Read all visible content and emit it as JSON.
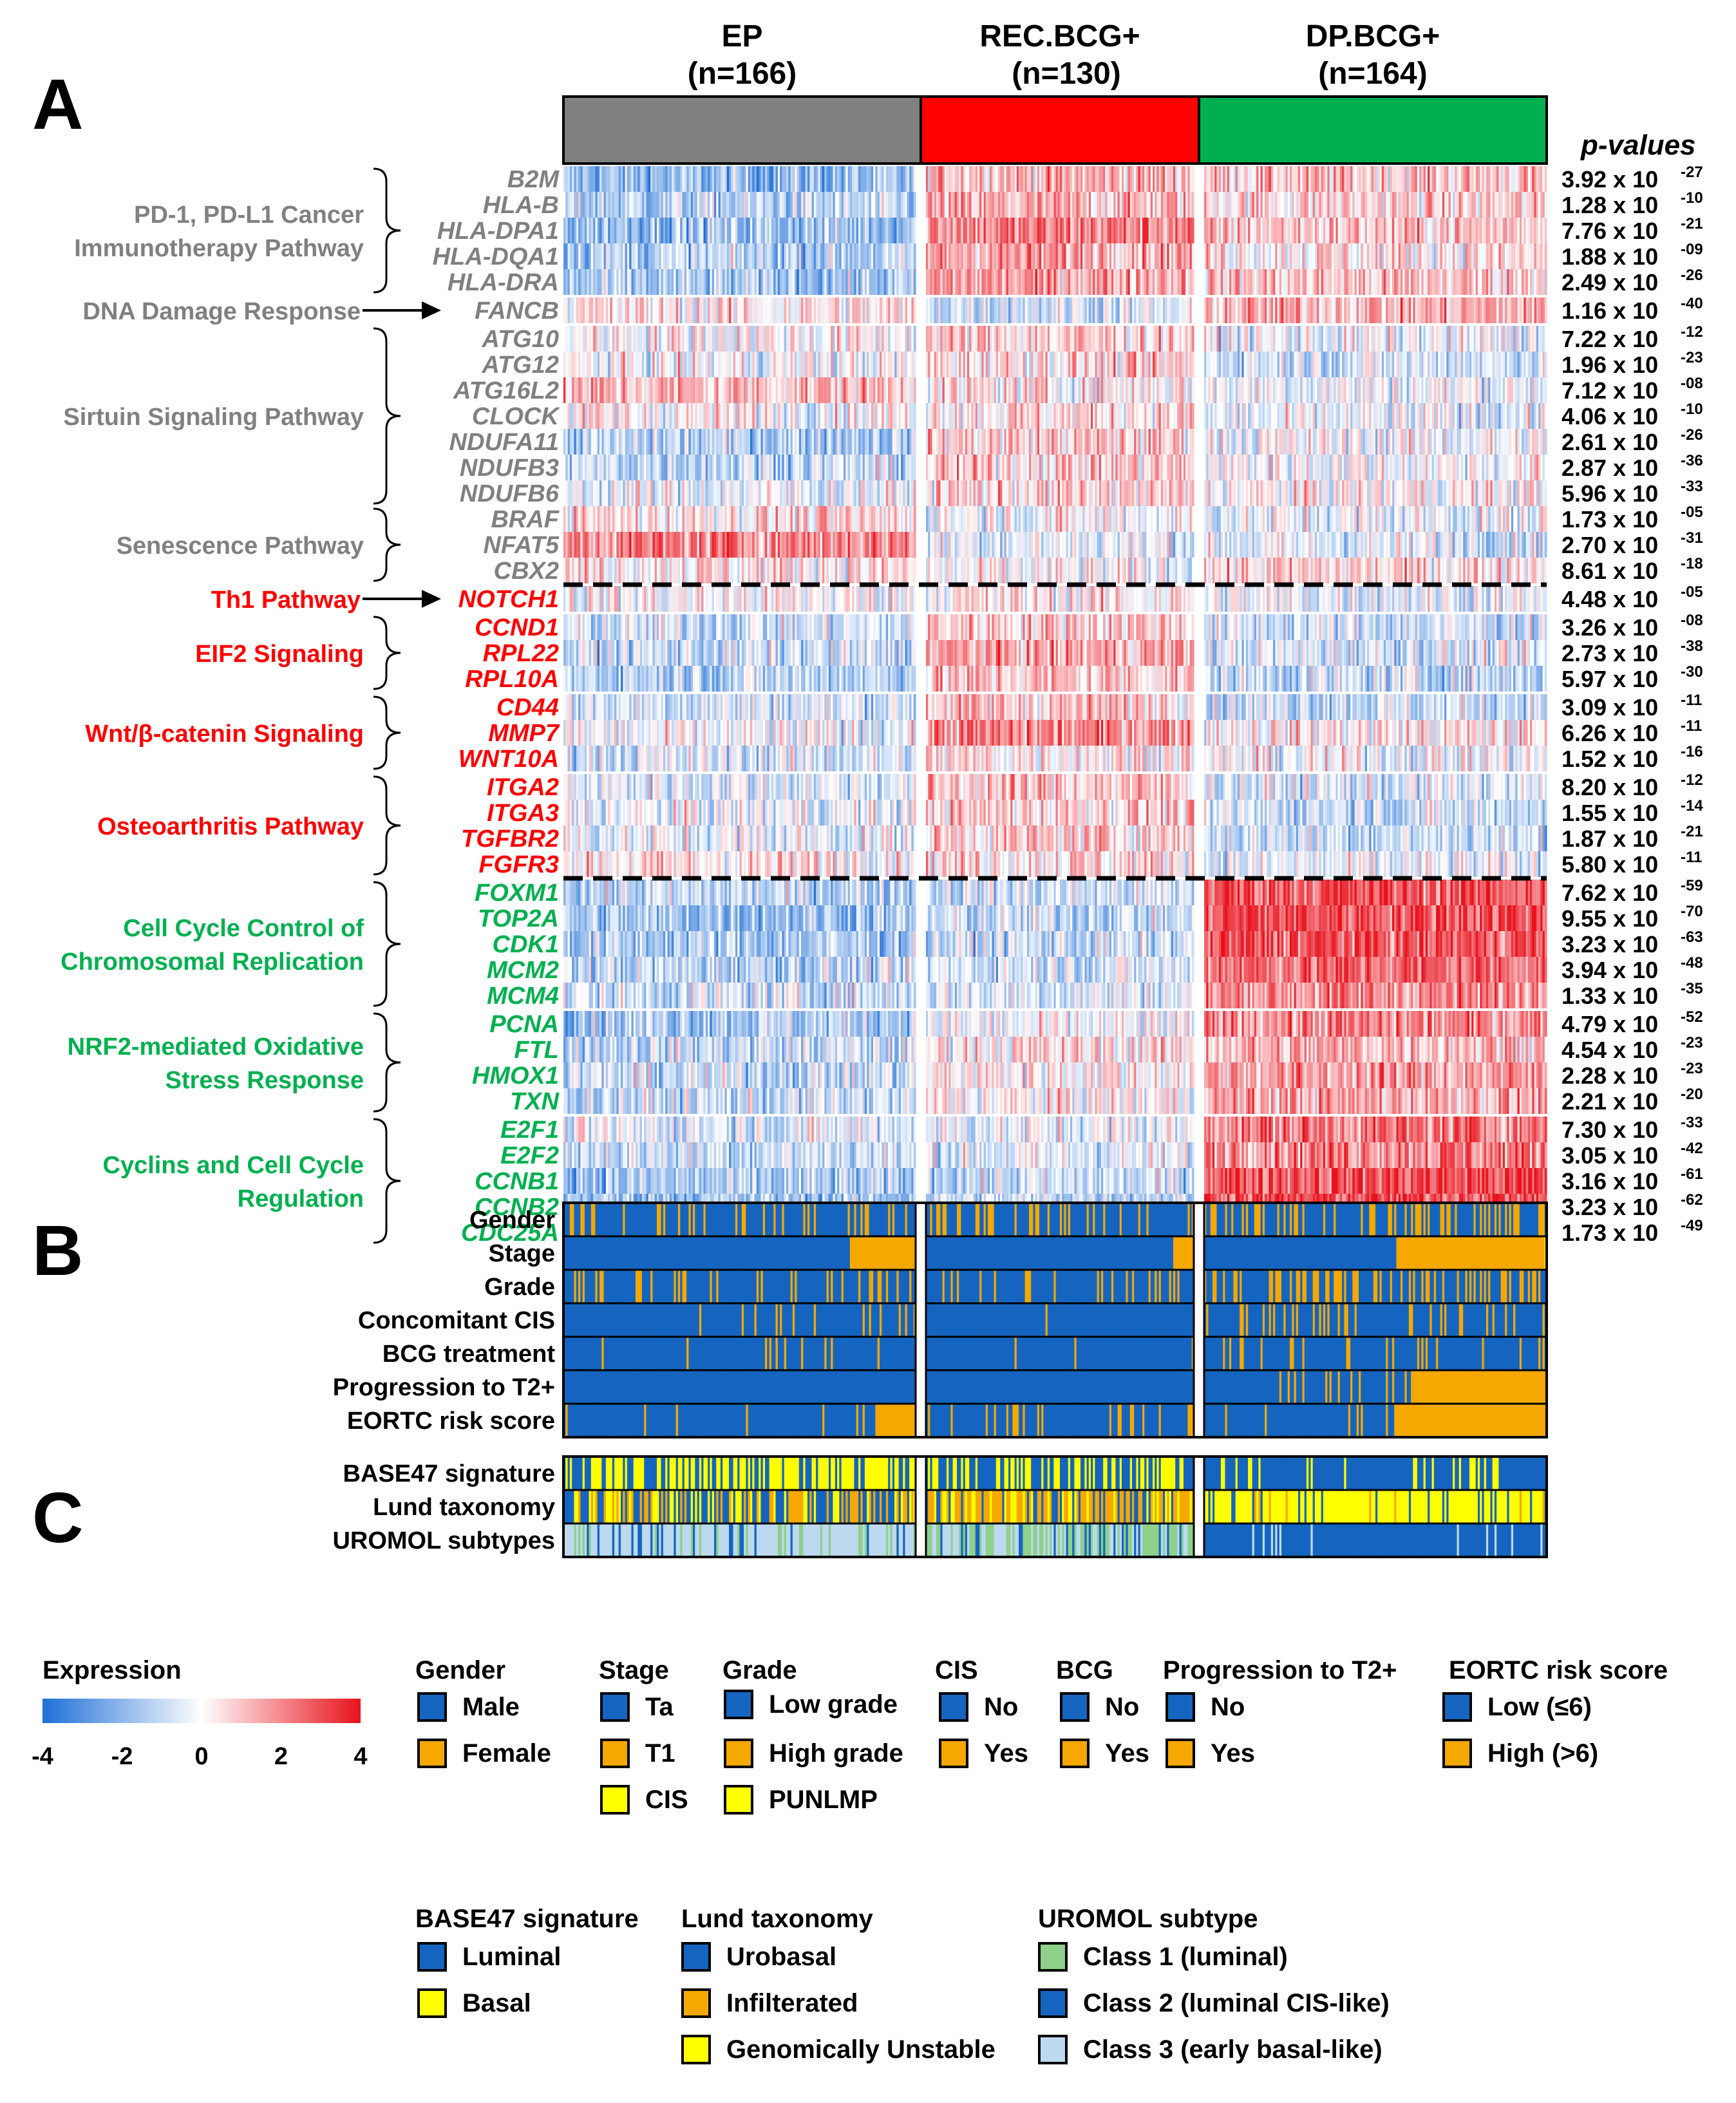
{
  "panels": {
    "A": "A",
    "B": "B",
    "C": "C"
  },
  "pvalues_header": "p-values",
  "chart_data": {
    "type": "heatmap",
    "title": "",
    "groups": [
      {
        "label": "EP",
        "n": "(n=166)",
        "color": "#808080",
        "count": 166
      },
      {
        "label": "REC.BCG+",
        "n": "(n=130)",
        "color": "#ff0000",
        "count": 130
      },
      {
        "label": "DP.BCG+",
        "n": "(n=164)",
        "color": "#00b050",
        "count": 164
      }
    ],
    "genes": [
      {
        "name": "B2M",
        "p": "3.92 x 10",
        "exp": "-27",
        "color": "#808080",
        "means": [
          -1.2,
          0.8,
          0.6
        ]
      },
      {
        "name": "HLA-B",
        "p": "1.28 x 10",
        "exp": "-10",
        "color": "#808080",
        "means": [
          -0.8,
          0.7,
          0.4
        ]
      },
      {
        "name": "HLA-DPA1",
        "p": "7.76 x 10",
        "exp": "-21",
        "color": "#808080",
        "means": [
          -1.0,
          1.3,
          0.6
        ]
      },
      {
        "name": "HLA-DQA1",
        "p": "1.88 x 10",
        "exp": "-09",
        "color": "#808080",
        "means": [
          -0.8,
          1.0,
          0.3
        ]
      },
      {
        "name": "HLA-DRA",
        "p": "2.49 x 10",
        "exp": "-26",
        "color": "#808080",
        "means": [
          -1.0,
          1.0,
          0.6
        ]
      },
      {
        "name": "FANCB",
        "p": "1.16 x 10",
        "exp": "-40",
        "color": "#808080",
        "means": [
          0.2,
          -0.4,
          0.8
        ]
      },
      {
        "name": "ATG10",
        "p": "7.22 x 10",
        "exp": "-12",
        "color": "#808080",
        "means": [
          0.1,
          0.5,
          -0.2
        ]
      },
      {
        "name": "ATG12",
        "p": "1.96 x 10",
        "exp": "-23",
        "color": "#808080",
        "means": [
          -0.1,
          0.4,
          -0.4
        ]
      },
      {
        "name": "ATG16L2",
        "p": "7.12 x 10",
        "exp": "-08",
        "color": "#808080",
        "means": [
          0.7,
          0.2,
          -0.1
        ]
      },
      {
        "name": "CLOCK",
        "p": "4.06 x 10",
        "exp": "-10",
        "color": "#808080",
        "means": [
          0.1,
          0.4,
          -0.3
        ]
      },
      {
        "name": "NDUFA11",
        "p": "2.61 x 10",
        "exp": "-26",
        "color": "#808080",
        "means": [
          -0.8,
          0.5,
          -0.1
        ]
      },
      {
        "name": "NDUFB3",
        "p": "2.87 x 10",
        "exp": "-36",
        "color": "#808080",
        "means": [
          -0.6,
          0.5,
          0.0
        ]
      },
      {
        "name": "NDUFB6",
        "p": "5.96 x 10",
        "exp": "-33",
        "color": "#808080",
        "means": [
          -0.2,
          0.4,
          0.1
        ]
      },
      {
        "name": "BRAF",
        "p": "1.73 x 10",
        "exp": "-05",
        "color": "#808080",
        "means": [
          0.3,
          0.0,
          -0.2
        ]
      },
      {
        "name": "NFAT5",
        "p": "2.70 x 10",
        "exp": "-31",
        "color": "#808080",
        "means": [
          1.3,
          -0.2,
          -0.3
        ]
      },
      {
        "name": "CBX2",
        "p": "8.61 x 10",
        "exp": "-18",
        "color": "#808080",
        "means": [
          0.3,
          -0.1,
          0.4
        ]
      },
      {
        "name": "NOTCH1",
        "p": "4.48 x 10",
        "exp": "-05",
        "color": "#ff0000",
        "means": [
          0.0,
          0.2,
          -0.2
        ]
      },
      {
        "name": "CCND1",
        "p": "3.26 x 10",
        "exp": "-08",
        "color": "#ff0000",
        "means": [
          -0.5,
          0.6,
          -0.5
        ]
      },
      {
        "name": "RPL22",
        "p": "2.73 x 10",
        "exp": "-38",
        "color": "#ff0000",
        "means": [
          -0.6,
          0.9,
          -0.4
        ]
      },
      {
        "name": "RPL10A",
        "p": "5.97 x 10",
        "exp": "-30",
        "color": "#ff0000",
        "means": [
          -0.7,
          0.6,
          -0.6
        ]
      },
      {
        "name": "CD44",
        "p": "3.09 x 10",
        "exp": "-11",
        "color": "#ff0000",
        "means": [
          -0.4,
          0.6,
          -0.5
        ]
      },
      {
        "name": "MMP7",
        "p": "6.26 x 10",
        "exp": "-11",
        "color": "#ff0000",
        "means": [
          -0.2,
          1.2,
          0.2
        ]
      },
      {
        "name": "WNT10A",
        "p": "1.52 x 10",
        "exp": "-16",
        "color": "#ff0000",
        "means": [
          -0.4,
          0.3,
          -0.1
        ]
      },
      {
        "name": "ITGA2",
        "p": "8.20 x 10",
        "exp": "-12",
        "color": "#ff0000",
        "means": [
          -0.3,
          0.6,
          -0.4
        ]
      },
      {
        "name": "ITGA3",
        "p": "1.55 x 10",
        "exp": "-14",
        "color": "#ff0000",
        "means": [
          -0.2,
          0.5,
          -0.5
        ]
      },
      {
        "name": "TGFBR2",
        "p": "1.87 x 10",
        "exp": "-21",
        "color": "#ff0000",
        "means": [
          -0.2,
          0.5,
          -0.5
        ]
      },
      {
        "name": "FGFR3",
        "p": "5.80 x 10",
        "exp": "-11",
        "color": "#ff0000",
        "means": [
          0.3,
          0.4,
          -0.3
        ]
      },
      {
        "name": "FOXM1",
        "p": "7.62 x 10",
        "exp": "-59",
        "color": "#00b050",
        "means": [
          -0.7,
          -0.5,
          1.8
        ]
      },
      {
        "name": "TOP2A",
        "p": "9.55 x 10",
        "exp": "-70",
        "color": "#00b050",
        "means": [
          -1.0,
          -0.6,
          1.9
        ]
      },
      {
        "name": "CDK1",
        "p": "3.23 x 10",
        "exp": "-63",
        "color": "#00b050",
        "means": [
          -0.9,
          -0.6,
          1.8
        ]
      },
      {
        "name": "MCM2",
        "p": "3.94 x 10",
        "exp": "-48",
        "color": "#00b050",
        "means": [
          -0.7,
          -0.4,
          1.6
        ]
      },
      {
        "name": "MCM4",
        "p": "1.33 x 10",
        "exp": "-35",
        "color": "#00b050",
        "means": [
          -0.5,
          -0.3,
          1.2
        ]
      },
      {
        "name": "PCNA",
        "p": "4.79 x 10",
        "exp": "-52",
        "color": "#00b050",
        "means": [
          -0.8,
          -0.2,
          1.2
        ]
      },
      {
        "name": "FTL",
        "p": "4.54 x 10",
        "exp": "-23",
        "color": "#00b050",
        "means": [
          -0.6,
          0.3,
          0.8
        ]
      },
      {
        "name": "HMOX1",
        "p": "2.28 x 10",
        "exp": "-23",
        "color": "#00b050",
        "means": [
          -0.6,
          0.2,
          1.0
        ]
      },
      {
        "name": "TXN",
        "p": "2.21 x 10",
        "exp": "-20",
        "color": "#00b050",
        "means": [
          -0.6,
          0.1,
          0.9
        ]
      },
      {
        "name": "E2F1",
        "p": "7.30 x 10",
        "exp": "-33",
        "color": "#00b050",
        "means": [
          -0.3,
          -0.2,
          1.4
        ]
      },
      {
        "name": "E2F2",
        "p": "3.05 x 10",
        "exp": "-42",
        "color": "#00b050",
        "means": [
          -0.5,
          -0.3,
          1.4
        ]
      },
      {
        "name": "CCNB1",
        "p": "3.16 x 10",
        "exp": "-61",
        "color": "#00b050",
        "means": [
          -1.0,
          -0.6,
          1.9
        ]
      },
      {
        "name": "CCNB2",
        "p": "3.23 x 10",
        "exp": "-62",
        "color": "#00b050",
        "means": [
          -1.0,
          -0.6,
          1.9
        ]
      },
      {
        "name": "CDC25A",
        "p": "1.73 x 10",
        "exp": "-49",
        "color": "#00b050",
        "means": [
          -0.5,
          -0.2,
          1.5
        ]
      }
    ],
    "pathways": [
      {
        "lines": [
          "PD-1, PD-L1 Cancer",
          "Immunotherapy Pathway"
        ],
        "from": 0,
        "to": 4,
        "color": "#808080",
        "marker": "brace"
      },
      {
        "lines": [
          "DNA Damage Response"
        ],
        "from": 5,
        "to": 5,
        "color": "#808080",
        "marker": "arrow"
      },
      {
        "lines": [
          "Sirtuin Signaling Pathway"
        ],
        "from": 6,
        "to": 12,
        "color": "#808080",
        "marker": "brace"
      },
      {
        "lines": [
          "Senescence Pathway"
        ],
        "from": 13,
        "to": 15,
        "color": "#808080",
        "marker": "brace"
      },
      {
        "lines": [
          "Th1 Pathway"
        ],
        "from": 16,
        "to": 16,
        "color": "#ff0000",
        "marker": "arrow"
      },
      {
        "lines": [
          "EIF2 Signaling"
        ],
        "from": 17,
        "to": 19,
        "color": "#ff0000",
        "marker": "brace"
      },
      {
        "lines": [
          "Wnt/β-catenin Signaling"
        ],
        "from": 20,
        "to": 22,
        "color": "#ff0000",
        "marker": "brace"
      },
      {
        "lines": [
          "Osteoarthritis Pathway"
        ],
        "from": 23,
        "to": 26,
        "color": "#ff0000",
        "marker": "brace"
      },
      {
        "lines": [
          "Cell Cycle Control of",
          "Chromosomal Replication"
        ],
        "from": 27,
        "to": 31,
        "color": "#00b050",
        "marker": "brace"
      },
      {
        "lines": [
          "NRF2-mediated Oxidative",
          "Stress Response"
        ],
        "from": 32,
        "to": 35,
        "color": "#00b050",
        "marker": "brace"
      },
      {
        "lines": [
          "Cyclins and Cell Cycle",
          "Regulation"
        ],
        "from": 36,
        "to": 40,
        "color": "#00b050",
        "marker": "brace"
      }
    ],
    "dashed_after": [
      15,
      26
    ],
    "row_gaps_after": [
      4,
      5,
      15,
      16,
      19,
      22,
      26,
      31,
      35
    ],
    "clinical_tracks": [
      {
        "label": "Gender",
        "rates": [
          0.25,
          0.22,
          0.28
        ]
      },
      {
        "label": "Stage",
        "t1_fraction": [
          0.19,
          0.08,
          0.44
        ]
      },
      {
        "label": "Grade",
        "rates": [
          0.18,
          0.12,
          0.35
        ]
      },
      {
        "label": "Concomitant CIS",
        "rates": [
          0.06,
          0.03,
          0.18
        ]
      },
      {
        "label": "BCG treatment",
        "rates": [
          0.04,
          0.02,
          0.12
        ]
      },
      {
        "label": "Progression to T2+",
        "rates": [
          0.02,
          0.01,
          0.4
        ]
      },
      {
        "label": "EORTC risk score",
        "high_fraction": [
          0.12,
          0.03,
          0.45
        ]
      }
    ],
    "molecular_tracks": [
      {
        "label": "BASE47 signature",
        "basal_rates": [
          0.55,
          0.45,
          0.15
        ]
      },
      {
        "label": "Lund taxonomy"
      },
      {
        "label": "UROMOL subtypes"
      }
    ],
    "colorbar": {
      "title": "Expression",
      "ticks": [
        "-4",
        "-2",
        "0",
        "2",
        "4"
      ],
      "min": -4,
      "max": 4,
      "low": "#1f6fd6",
      "mid": "#ffffff",
      "high": "#e8121c"
    }
  },
  "legend": {
    "gender": {
      "title": "Gender",
      "items": [
        {
          "label": "Male",
          "color": "#1565c0"
        },
        {
          "label": "Female",
          "color": "#f5a800"
        }
      ]
    },
    "stage": {
      "title": "Stage",
      "items": [
        {
          "label": "Ta",
          "color": "#1565c0"
        },
        {
          "label": "T1",
          "color": "#f5a800"
        },
        {
          "label": "CIS",
          "color": "#ffff00"
        }
      ]
    },
    "grade": {
      "title": "Grade",
      "items": [
        {
          "label": "Low grade",
          "color": "#1565c0"
        },
        {
          "label": "High grade",
          "color": "#f5a800"
        },
        {
          "label": "PUNLMP",
          "color": "#ffff00"
        }
      ]
    },
    "cis": {
      "title": "CIS",
      "items": [
        {
          "label": "No",
          "color": "#1565c0"
        },
        {
          "label": "Yes",
          "color": "#f5a800"
        }
      ]
    },
    "bcg": {
      "title": "BCG",
      "items": [
        {
          "label": "No",
          "color": "#1565c0"
        },
        {
          "label": "Yes",
          "color": "#f5a800"
        }
      ]
    },
    "progression": {
      "title": "Progression to T2+",
      "items": [
        {
          "label": "No",
          "color": "#1565c0"
        },
        {
          "label": "Yes",
          "color": "#f5a800"
        }
      ]
    },
    "eortc": {
      "title": "EORTC risk score",
      "items": [
        {
          "label": "Low (≤6)",
          "color": "#1565c0"
        },
        {
          "label": "High (>6)",
          "color": "#f5a800"
        }
      ]
    },
    "base47": {
      "title": "BASE47 signature",
      "items": [
        {
          "label": "Luminal",
          "color": "#1565c0"
        },
        {
          "label": "Basal",
          "color": "#ffff00"
        }
      ]
    },
    "lund": {
      "title": "Lund taxonomy",
      "items": [
        {
          "label": "Urobasal",
          "color": "#1565c0"
        },
        {
          "label": "Infilterated",
          "color": "#f5a800"
        },
        {
          "label": "Genomically Unstable",
          "color": "#ffff00"
        }
      ]
    },
    "uromol": {
      "title": "UROMOL subtype",
      "items": [
        {
          "label": "Class 1 (luminal)",
          "color": "#8fd08a"
        },
        {
          "label": "Class 2 (luminal CIS-like)",
          "color": "#1565c0"
        },
        {
          "label": "Class 3 (early basal-like)",
          "color": "#bcd9f0"
        }
      ]
    }
  }
}
